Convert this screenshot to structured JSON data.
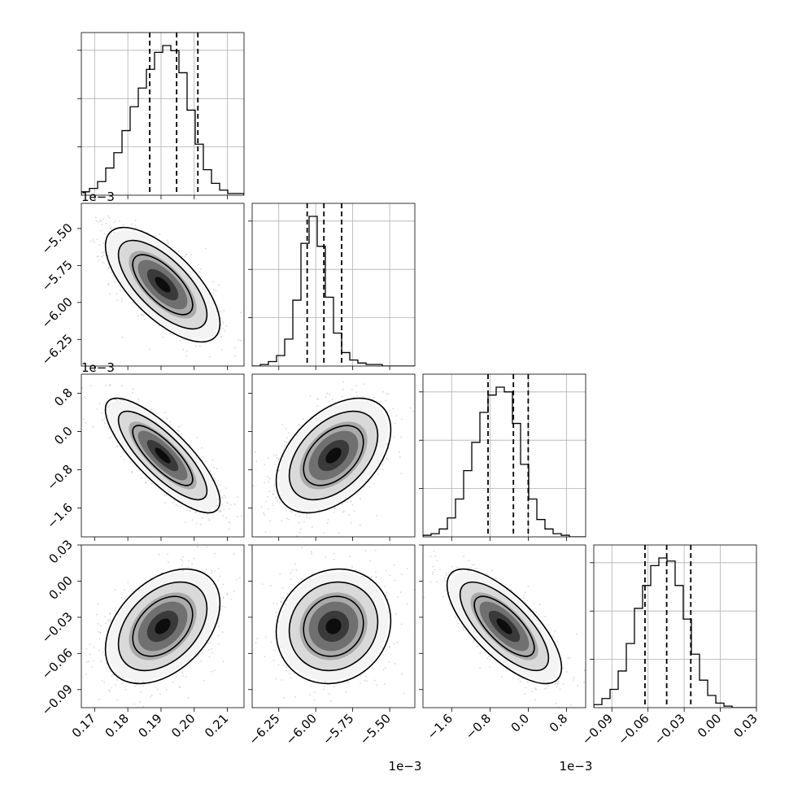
{
  "chart_data": {
    "type": "corner",
    "grid": true,
    "params": [
      {
        "range": [
          0.166,
          0.215
        ],
        "ticks": [
          0.17,
          0.18,
          0.19,
          0.2,
          0.21
        ],
        "tick_labels": [
          "0.17",
          "0.18",
          "0.19",
          "0.20",
          "0.21"
        ],
        "offset": ""
      },
      {
        "range": [
          -6.43,
          -5.33
        ],
        "ticks": [
          -6.25,
          -6.0,
          -5.75,
          -5.5
        ],
        "tick_labels": [
          "−6.25",
          "−6.00",
          "−5.75",
          "−5.50"
        ],
        "offset": "1e−3"
      },
      {
        "range": [
          -2.2,
          1.2
        ],
        "ticks": [
          -1.6,
          -0.8,
          0.0,
          0.8
        ],
        "tick_labels": [
          "−1.6",
          "−0.8",
          "0.0",
          "0.8"
        ],
        "offset": "1e−3"
      },
      {
        "range": [
          -0.105,
          0.03
        ],
        "ticks": [
          -0.09,
          -0.06,
          -0.03,
          0.0,
          0.03
        ],
        "tick_labels": [
          "−0.09",
          "−0.06",
          "−0.03",
          "0.00",
          "0.03"
        ],
        "offset": ""
      }
    ],
    "diagonal": [
      {
        "edges_start": 0.166,
        "bin_width": 0.00245,
        "counts": [
          2,
          4,
          8,
          16,
          25,
          38,
          52,
          63,
          74,
          84,
          88,
          85,
          72,
          50,
          30,
          15,
          7,
          3,
          1,
          1
        ],
        "quantiles": [
          0.1866,
          0.1947,
          0.2011
        ]
      },
      {
        "edges_start": -6.43,
        "bin_width": 0.055,
        "counts": [
          0,
          1,
          3,
          7,
          18,
          44,
          82,
          100,
          80,
          46,
          22,
          9,
          4,
          2,
          1,
          1,
          0,
          0,
          0,
          0
        ],
        "quantiles": [
          -6.058,
          -5.945,
          -5.825
        ]
      },
      {
        "edges_start": -2.2,
        "bin_width": 0.17,
        "counts": [
          1,
          2,
          5,
          12,
          24,
          42,
          60,
          79,
          90,
          95,
          92,
          72,
          46,
          24,
          11,
          5,
          2,
          1,
          0,
          0
        ],
        "quantiles": [
          -0.84,
          -0.31,
          0.0
        ]
      },
      {
        "edges_start": -0.105,
        "bin_width": 0.00675,
        "counts": [
          2,
          6,
          12,
          24,
          42,
          65,
          80,
          93,
          98,
          96,
          80,
          58,
          35,
          18,
          8,
          3,
          1,
          0,
          0,
          0
        ],
        "quantiles": [
          -0.0625,
          -0.0445,
          -0.0245
        ]
      }
    ],
    "pairs": [
      {
        "row": 1,
        "col": 0,
        "rho": -0.68
      },
      {
        "row": 2,
        "col": 0,
        "rho": -0.8
      },
      {
        "row": 2,
        "col": 1,
        "rho": 0.45
      },
      {
        "row": 3,
        "col": 0,
        "rho": 0.4
      },
      {
        "row": 3,
        "col": 1,
        "rho": 0.1
      },
      {
        "row": 3,
        "col": 2,
        "rho": -0.72
      }
    ],
    "colors": {
      "line": "#000000",
      "grid": "#b0b0b0",
      "points": "#8c8c8c"
    }
  }
}
